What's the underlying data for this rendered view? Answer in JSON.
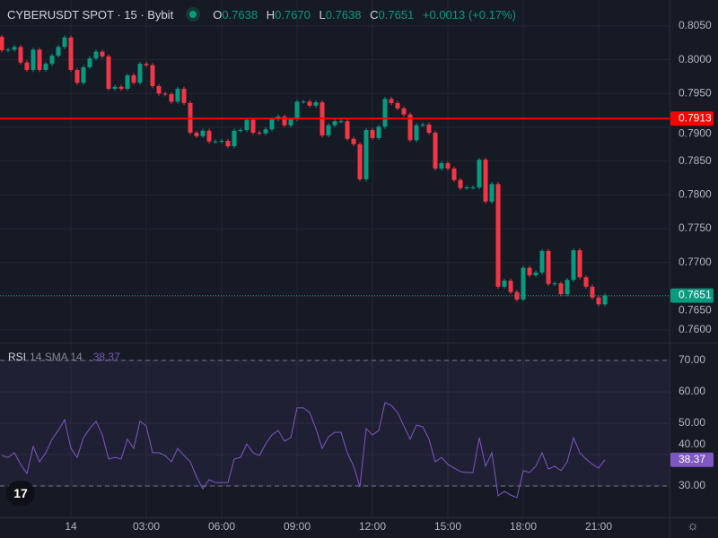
{
  "header": {
    "symbol": "CYBERUSDT SPOT · 15 · Bybit",
    "status": "market-open-dot",
    "ohlc": {
      "o_label": "O",
      "o": "0.7638",
      "h_label": "H",
      "h": "0.7670",
      "l_label": "L",
      "l": "0.7638",
      "c_label": "C",
      "c": "0.7651",
      "change": "+0.0013 (+0.17%)"
    }
  },
  "indicator": {
    "name": "RSI",
    "params": "14 SMA 14",
    "value": "38.37"
  },
  "colors": {
    "up": "#089981",
    "down": "#f23645",
    "rsi": "#7e57c2",
    "line": "#ff0000",
    "bg": "#161a25"
  },
  "price_axis": {
    "labels": [
      "0.8050",
      "0.8000",
      "0.7950",
      "0.7900",
      "0.7850",
      "0.7800",
      "0.7750",
      "0.7700",
      "0.7650",
      "0.7600"
    ],
    "range": [
      0.758,
      0.8078
    ],
    "horizontal_line": {
      "price": 0.7913,
      "label": "0.7913"
    },
    "last_price": {
      "price": 0.7651,
      "label": "0.7651"
    }
  },
  "rsi_axis": {
    "labels": [
      "70.00",
      "60.00",
      "50.00",
      "40.00",
      "30.00"
    ],
    "upper": 70,
    "lower": 30,
    "range": [
      24,
      75
    ],
    "last_label": "38.37"
  },
  "time_axis": {
    "labels": [
      "14",
      "03:00",
      "06:00",
      "09:00",
      "12:00",
      "15:00",
      "18:00",
      "21:00"
    ]
  },
  "chart_data": {
    "type": "candlestick",
    "timeframe": "15",
    "first_open": 0.8034,
    "close": [
      0.8014,
      0.8015,
      0.8019,
      0.7996,
      0.7985,
      0.8015,
      0.7985,
      0.7994,
      0.8006,
      0.8019,
      0.8033,
      0.7985,
      0.7966,
      0.7989,
      0.8002,
      0.8012,
      0.8005,
      0.7957,
      0.796,
      0.7957,
      0.7977,
      0.7966,
      0.7994,
      0.7992,
      0.7961,
      0.795,
      0.7949,
      0.7938,
      0.7957,
      0.7936,
      0.7892,
      0.7887,
      0.7895,
      0.7879,
      0.7879,
      0.788,
      0.7872,
      0.7895,
      0.7896,
      0.7911,
      0.7892,
      0.7891,
      0.7897,
      0.7912,
      0.7916,
      0.7903,
      0.7912,
      0.7938,
      0.7938,
      0.7932,
      0.7937,
      0.7888,
      0.7903,
      0.7909,
      0.7909,
      0.7883,
      0.7875,
      0.7823,
      0.7896,
      0.7884,
      0.7901,
      0.7942,
      0.7936,
      0.7928,
      0.7919,
      0.7881,
      0.7903,
      0.7904,
      0.7892,
      0.7839,
      0.7847,
      0.7839,
      0.7822,
      0.781,
      0.7811,
      0.7811,
      0.7852,
      0.779,
      0.7816,
      0.7664,
      0.7673,
      0.7656,
      0.7645,
      0.7692,
      0.7681,
      0.7685,
      0.7717,
      0.7668,
      0.7669,
      0.7653,
      0.7674,
      0.7718,
      0.7678,
      0.7664,
      0.7648,
      0.7638,
      0.7651
    ],
    "rsi": [
      39.7,
      39.1,
      40.6,
      36.9,
      34.0,
      42.6,
      37.7,
      40.6,
      44.9,
      47.7,
      51.1,
      42.0,
      39.1,
      45.4,
      48.3,
      50.6,
      46.3,
      38.6,
      39.1,
      38.6,
      44.9,
      42.0,
      50.6,
      49.1,
      40.6,
      40.6,
      39.7,
      37.7,
      42.0,
      39.7,
      37.7,
      32.9,
      29.1,
      32.0,
      31.1,
      31.1,
      31.1,
      38.6,
      39.1,
      43.4,
      40.6,
      39.7,
      43.4,
      46.3,
      47.7,
      44.3,
      45.4,
      54.9,
      54.9,
      53.4,
      48.3,
      42.0,
      45.7,
      47.1,
      47.1,
      40.6,
      36.3,
      29.7,
      48.3,
      46.3,
      47.7,
      56.6,
      55.7,
      53.4,
      49.1,
      44.9,
      49.4,
      48.9,
      44.9,
      37.7,
      39.1,
      36.9,
      35.7,
      34.6,
      34.3,
      34.3,
      45.4,
      36.3,
      40.6,
      26.9,
      28.3,
      27.1,
      26.3,
      34.9,
      34.3,
      36.3,
      40.6,
      35.4,
      36.3,
      34.9,
      37.7,
      45.4,
      40.6,
      38.6,
      36.9,
      35.7,
      38.37
    ]
  }
}
